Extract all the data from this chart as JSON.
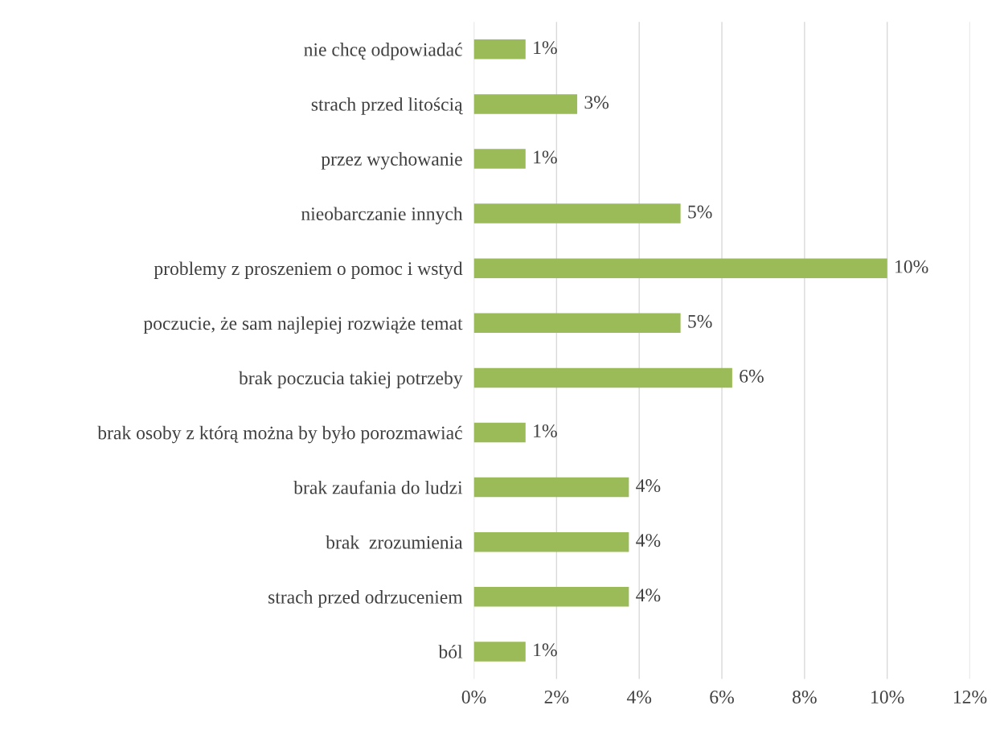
{
  "chart_data": {
    "type": "bar",
    "orientation": "horizontal",
    "categories": [
      "nie chcę odpowiadać",
      "strach przed litością",
      "przez wychowanie",
      "nieobarczanie innych",
      "problemy z proszeniem o pomoc i wstyd",
      "poczucie, że sam najlepiej rozwiąże temat",
      "brak poczucia takiej potrzeby",
      "brak osoby z którą można by było porozmawiać",
      "brak zaufania do ludzi",
      "brak  zrozumienia",
      "strach przed odrzuceniem",
      "ból"
    ],
    "values": [
      1.25,
      2.5,
      1.25,
      5,
      10,
      5,
      6.25,
      1.25,
      3.75,
      3.75,
      3.75,
      1.25
    ],
    "value_labels": [
      "1%",
      "3%",
      "1%",
      "5%",
      "10%",
      "5%",
      "6%",
      "1%",
      "4%",
      "4%",
      "4%",
      "1%"
    ],
    "color": "#9bbb59",
    "xlim": [
      0,
      12
    ],
    "xticks": [
      {
        "value": 0,
        "label": "0%"
      },
      {
        "value": 2,
        "label": "2%"
      },
      {
        "value": 4,
        "label": "4%"
      },
      {
        "value": 6,
        "label": "6%"
      },
      {
        "value": 8,
        "label": "8%"
      },
      {
        "value": 10,
        "label": "10%"
      },
      {
        "value": 12,
        "label": "12%"
      }
    ],
    "grid": "x",
    "legend": false
  }
}
